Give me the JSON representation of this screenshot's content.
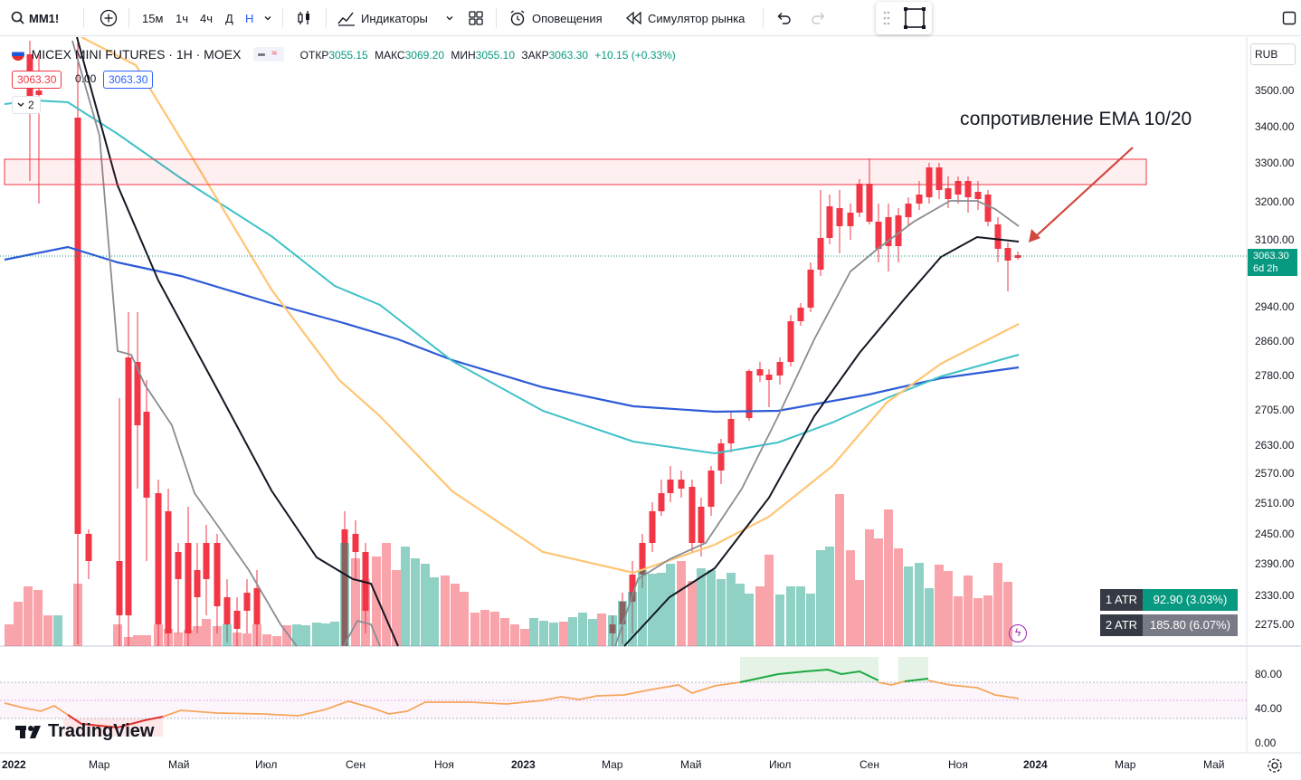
{
  "toolbar": {
    "symbol": "MM1!",
    "intervals": [
      "15м",
      "1ч",
      "4ч",
      "Д",
      "Н"
    ],
    "active_interval": "Н",
    "indicators_label": "Индикаторы",
    "alerts_label": "Оповещения",
    "replay_label": "Симулятор рынка"
  },
  "legend": {
    "title": "MICEX MINI FUTURES · 1H · MOEX",
    "o_label": "ОТКР",
    "o_value": "3055.15",
    "h_label": "МАКС",
    "h_value": "3069.20",
    "l_label": "МИН",
    "l_value": "3055.10",
    "c_label": "ЗАКР",
    "c_value": "3063.30",
    "change": "+10.15 (+0.33%)",
    "bid": "3063.30",
    "spread": "0.00",
    "ask": "3063.30",
    "collapsed_count": "2"
  },
  "annotation": "сопротивление EMA 10/20",
  "currency": "RUB",
  "price_axis": [
    "3500.00",
    "3400.00",
    "3300.00",
    "3200.00",
    "3100.00",
    "2940.00",
    "2860.00",
    "2780.00",
    "2705.00",
    "2630.00",
    "2570.00",
    "2510.00",
    "2450.00",
    "2390.00",
    "2330.00",
    "2275.00"
  ],
  "last_price": {
    "value": "3063.30",
    "countdown": "6d 2h"
  },
  "osc_axis": [
    "80.00",
    "40.00",
    "0.00"
  ],
  "time_axis": [
    "2022",
    "Мар",
    "Май",
    "Июл",
    "Сен",
    "Ноя",
    "2023",
    "Мар",
    "Май",
    "Июл",
    "Сен",
    "Ноя",
    "2024",
    "Мар",
    "Май"
  ],
  "atr": [
    {
      "name": "1 ATR",
      "value": "92.90 (3.03%)",
      "color": "#089981"
    },
    {
      "name": "2 ATR",
      "value": "185.80 (6.07%)",
      "color": "#787b86"
    }
  ],
  "brand": "TradingView",
  "colors": {
    "up": "#089981",
    "down": "#f23645",
    "accent": "#2962ff"
  }
}
